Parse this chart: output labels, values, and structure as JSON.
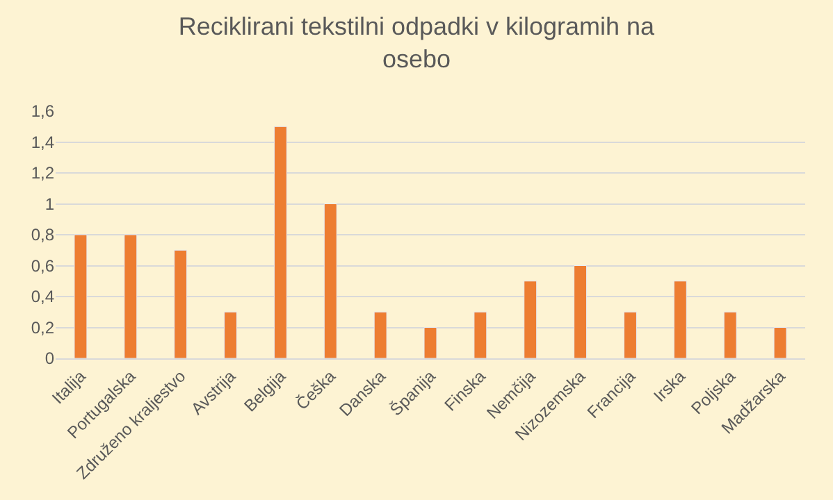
{
  "chart_data": {
    "type": "bar",
    "title": "Reciklirani tekstilni odpadki v kilogramih na osebo",
    "categories": [
      "Italija",
      "Portugalska",
      "Združeno kraljestvo",
      "Avstrija",
      "Belgija",
      "Češka",
      "Danska",
      "Španija",
      "Finska",
      "Nemčija",
      "Nizozemska",
      "Francija",
      "Irska",
      "Poljska",
      "Madžarska"
    ],
    "values": [
      0.8,
      0.8,
      0.7,
      0.3,
      1.5,
      1.0,
      0.3,
      0.2,
      0.3,
      0.5,
      0.6,
      0.3,
      0.5,
      0.3,
      0.2
    ],
    "color": "#ed7d31",
    "ylim": [
      0,
      1.6
    ],
    "yticks": [
      {
        "value": 0,
        "label": "0"
      },
      {
        "value": 0.2,
        "label": "0,2"
      },
      {
        "value": 0.4,
        "label": "0,4"
      },
      {
        "value": 0.6,
        "label": "0,6"
      },
      {
        "value": 0.8,
        "label": "0,8"
      },
      {
        "value": 1,
        "label": "1"
      },
      {
        "value": 1.2,
        "label": "1,2"
      },
      {
        "value": 1.4,
        "label": "1,4"
      },
      {
        "value": 1.6,
        "label": "1,6"
      }
    ],
    "grid": "y",
    "legend": false
  }
}
